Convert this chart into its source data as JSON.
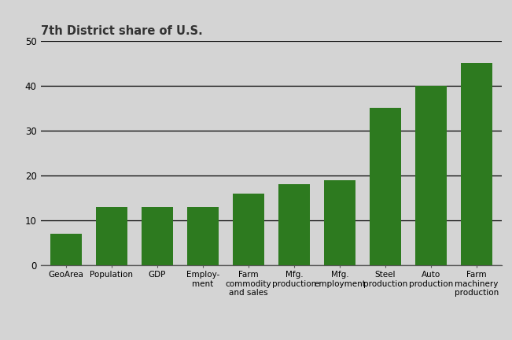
{
  "title": "7th District share of U.S.",
  "categories": [
    "GeoArea",
    "Population",
    "GDP",
    "Employ-\nment",
    "Farm\ncommodity\nand sales",
    "Mfg.\nproduction",
    "Mfg.\nemployment",
    "Steel\nproduction",
    "Auto\nproduction",
    "Farm\nmachinery\nproduction"
  ],
  "values": [
    7,
    13,
    13,
    13,
    16,
    18,
    19,
    35,
    40,
    45
  ],
  "bar_color": "#2d7a1f",
  "background_color": "#d4d4d4",
  "ylim": [
    0,
    50
  ],
  "yticks": [
    0,
    10,
    20,
    30,
    40,
    50
  ],
  "title_fontsize": 10.5,
  "tick_fontsize": 7.5,
  "ytick_fontsize": 8.5
}
